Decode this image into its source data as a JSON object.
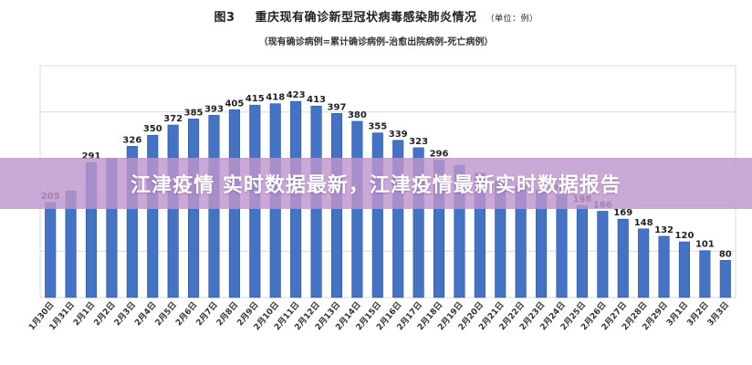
{
  "figure": {
    "number": "图3",
    "title": "重庆现有确诊新型冠状病毒感染肺炎情况",
    "unit": "（单位：例）",
    "subtitle": "（现有确诊病例=累计确诊病例-治愈出院病例-死亡病例）"
  },
  "banner": {
    "text": "江津疫情 实时数据最新，江津疫情最新实时数据报告"
  },
  "colors": {
    "bar": "#4472C4",
    "bar_stroke": "#2f5597",
    "grid": "#d9d9d9",
    "banner": "#be96cd"
  },
  "chart_data": {
    "type": "bar",
    "categories": [
      "1月30日",
      "1月31日",
      "2月1日",
      "2月2日",
      "2月3日",
      "2月4日",
      "2月5日",
      "2月6日",
      "2月7日",
      "2月8日",
      "2月9日",
      "2月10日",
      "2月11日",
      "2月12日",
      "2月13日",
      "2月14日",
      "2月15日",
      "2月16日",
      "2月17日",
      "2月18日",
      "2月19日",
      "2月20日",
      "2月21日",
      "2月22日",
      "2月23日",
      "2月24日",
      "2月25日",
      "2月26日",
      "2月27日",
      "2月28日",
      "2月29日",
      "3月1日",
      "3月2日",
      "3月3日"
    ],
    "values": [
      205,
      230,
      291,
      300,
      326,
      350,
      372,
      385,
      393,
      405,
      415,
      418,
      423,
      413,
      397,
      380,
      355,
      339,
      323,
      296,
      285,
      268,
      250,
      239,
      232,
      221,
      198,
      186,
      169,
      148,
      132,
      120,
      101,
      80
    ],
    "labels": [
      "205",
      "",
      "291",
      "",
      "326",
      "350",
      "372",
      "385",
      "393",
      "405",
      "415",
      "418",
      "423",
      "413",
      "397",
      "380",
      "355",
      "339",
      "323",
      "296",
      "",
      "",
      "",
      "",
      "",
      "221",
      "198",
      "186",
      "169",
      "148",
      "132",
      "120",
      "101",
      "80"
    ],
    "ylim": [
      0,
      500
    ],
    "grid": true
  }
}
